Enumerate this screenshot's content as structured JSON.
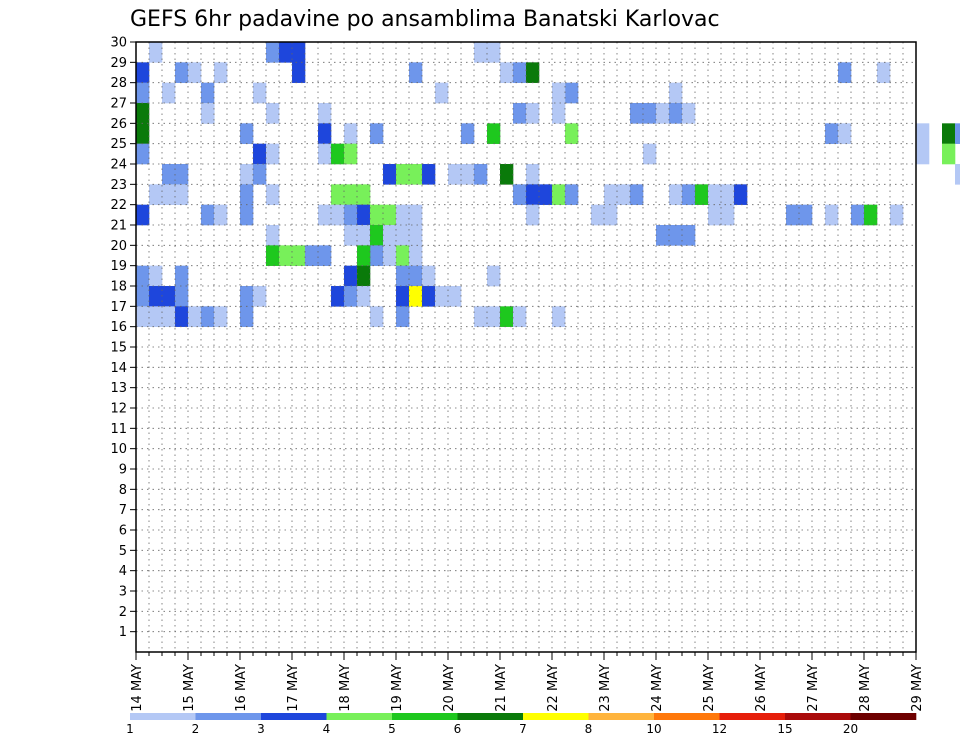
{
  "chart_data": {
    "type": "heatmap",
    "title": "GEFS 6hr padavine po ansamblima Banatski Karlovac",
    "y_labels": [
      "1",
      "2",
      "3",
      "4",
      "5",
      "6",
      "7",
      "8",
      "9",
      "10",
      "11",
      "12",
      "13",
      "14",
      "15",
      "16",
      "17",
      "18",
      "19",
      "20",
      "21",
      "22",
      "23",
      "24",
      "25",
      "26",
      "27",
      "28",
      "29",
      "30"
    ],
    "x_labels": [
      "14 MAY",
      "15 MAY",
      "16 MAY",
      "17 MAY",
      "18 MAY",
      "19 MAY",
      "20 MAY",
      "21 MAY",
      "22 MAY",
      "23 MAY",
      "24 MAY",
      "25 MAY",
      "26 MAY",
      "27 MAY",
      "28 MAY",
      "29 MAY"
    ],
    "ylim": [
      0,
      30
    ],
    "x_range_days": [
      14,
      29
    ],
    "time_step_hours": 6,
    "grid": true,
    "legend_placement": "bottom",
    "legend": {
      "labels": [
        "1",
        "2",
        "3",
        "4",
        "5",
        "6",
        "7",
        "8",
        "10",
        "12",
        "15",
        "20"
      ],
      "colors": [
        "#b4c8f5",
        "#6e96eb",
        "#1e46dc",
        "#78f05a",
        "#1ec81e",
        "#0a7a0a",
        "#ffff00",
        "#ffb43c",
        "#ff780a",
        "#e61e0a",
        "#aa0a0a",
        "#6e0000"
      ]
    },
    "cells": [
      [
        29,
        1,
        0
      ],
      [
        29,
        10,
        1
      ],
      [
        29,
        12,
        2
      ],
      [
        29,
        11,
        2
      ],
      [
        29,
        26,
        0
      ],
      [
        29,
        27,
        0
      ],
      [
        28,
        0,
        2
      ],
      [
        28,
        3,
        1
      ],
      [
        28,
        4,
        0
      ],
      [
        28,
        6,
        0
      ],
      [
        28,
        12,
        2
      ],
      [
        28,
        21,
        1
      ],
      [
        28,
        28,
        0
      ],
      [
        28,
        29,
        1
      ],
      [
        28,
        30,
        5
      ],
      [
        28,
        54,
        1
      ],
      [
        28,
        57,
        0
      ],
      [
        28,
        64,
        0
      ],
      [
        28,
        67,
        3
      ],
      [
        28,
        68,
        5
      ],
      [
        28,
        70,
        0
      ],
      [
        28,
        71,
        0
      ],
      [
        27,
        0,
        1
      ],
      [
        27,
        2,
        0
      ],
      [
        27,
        5,
        1
      ],
      [
        27,
        9,
        0
      ],
      [
        27,
        23,
        0
      ],
      [
        27,
        32,
        0
      ],
      [
        27,
        33,
        1
      ],
      [
        27,
        32,
        0
      ],
      [
        27,
        41,
        0
      ],
      [
        26,
        0,
        5
      ],
      [
        26,
        5,
        1
      ],
      [
        26,
        5,
        0
      ],
      [
        26,
        10,
        0
      ],
      [
        26,
        14,
        0
      ],
      [
        26,
        29,
        1
      ],
      [
        26,
        30,
        0
      ],
      [
        26,
        32,
        0
      ],
      [
        26,
        38,
        1
      ],
      [
        26,
        39,
        1
      ],
      [
        26,
        40,
        0
      ],
      [
        26,
        41,
        1
      ],
      [
        26,
        42,
        0
      ],
      [
        25,
        0,
        5
      ],
      [
        25,
        8,
        1
      ],
      [
        25,
        14,
        2
      ],
      [
        25,
        16,
        0
      ],
      [
        25,
        18,
        1
      ],
      [
        25,
        25,
        1
      ],
      [
        25,
        27,
        4
      ],
      [
        25,
        33,
        3
      ],
      [
        25,
        53,
        1
      ],
      [
        25,
        54,
        0
      ],
      [
        25,
        60,
        0
      ],
      [
        25,
        62,
        5
      ],
      [
        25,
        63,
        1
      ],
      [
        25,
        64,
        5
      ],
      [
        25,
        68,
        2
      ],
      [
        25,
        69,
        1
      ],
      [
        25,
        71,
        0
      ],
      [
        24,
        0,
        1
      ],
      [
        24,
        9,
        2
      ],
      [
        24,
        10,
        0
      ],
      [
        24,
        14,
        0
      ],
      [
        24,
        15,
        4
      ],
      [
        24,
        16,
        3
      ],
      [
        24,
        39,
        0
      ],
      [
        24,
        60,
        0
      ],
      [
        24,
        62,
        3
      ],
      [
        24,
        64,
        0
      ],
      [
        24,
        71,
        1
      ],
      [
        23,
        2,
        1
      ],
      [
        23,
        3,
        1
      ],
      [
        23,
        8,
        0
      ],
      [
        23,
        9,
        1
      ],
      [
        23,
        19,
        2
      ],
      [
        23,
        20,
        3
      ],
      [
        23,
        21,
        3
      ],
      [
        23,
        22,
        2
      ],
      [
        23,
        24,
        0
      ],
      [
        23,
        25,
        0
      ],
      [
        23,
        26,
        1
      ],
      [
        23,
        28,
        5
      ],
      [
        23,
        30,
        0
      ],
      [
        23,
        63,
        0
      ],
      [
        23,
        64,
        0
      ],
      [
        23,
        65,
        0
      ],
      [
        23,
        70,
        1
      ],
      [
        23,
        71,
        2
      ],
      [
        22,
        1,
        0
      ],
      [
        22,
        2,
        0
      ],
      [
        22,
        3,
        0
      ],
      [
        22,
        8,
        1
      ],
      [
        22,
        10,
        0
      ],
      [
        22,
        15,
        3
      ],
      [
        22,
        16,
        3
      ],
      [
        22,
        17,
        3
      ],
      [
        22,
        29,
        1
      ],
      [
        22,
        30,
        2
      ],
      [
        22,
        31,
        2
      ],
      [
        22,
        32,
        3
      ],
      [
        22,
        33,
        1
      ],
      [
        22,
        36,
        0
      ],
      [
        22,
        37,
        0
      ],
      [
        22,
        38,
        1
      ],
      [
        22,
        41,
        0
      ],
      [
        22,
        42,
        1
      ],
      [
        22,
        43,
        4
      ],
      [
        22,
        44,
        0
      ],
      [
        22,
        45,
        0
      ],
      [
        22,
        46,
        2
      ],
      [
        21,
        0,
        2
      ],
      [
        21,
        5,
        1
      ],
      [
        21,
        6,
        0
      ],
      [
        21,
        8,
        1
      ],
      [
        21,
        14,
        0
      ],
      [
        21,
        15,
        0
      ],
      [
        21,
        16,
        1
      ],
      [
        21,
        17,
        2
      ],
      [
        21,
        18,
        3
      ],
      [
        21,
        19,
        3
      ],
      [
        21,
        20,
        0
      ],
      [
        21,
        21,
        0
      ],
      [
        21,
        30,
        0
      ],
      [
        21,
        35,
        0
      ],
      [
        21,
        36,
        0
      ],
      [
        21,
        44,
        0
      ],
      [
        21,
        45,
        0
      ],
      [
        21,
        50,
        1
      ],
      [
        21,
        51,
        1
      ],
      [
        21,
        53,
        0
      ],
      [
        21,
        55,
        1
      ],
      [
        21,
        56,
        4
      ],
      [
        21,
        58,
        0
      ],
      [
        20,
        10,
        0
      ],
      [
        20,
        16,
        0
      ],
      [
        20,
        17,
        0
      ],
      [
        20,
        18,
        4
      ],
      [
        20,
        19,
        0
      ],
      [
        20,
        20,
        0
      ],
      [
        20,
        21,
        0
      ],
      [
        20,
        40,
        1
      ],
      [
        20,
        41,
        1
      ],
      [
        20,
        42,
        1
      ],
      [
        19,
        10,
        4
      ],
      [
        19,
        11,
        3
      ],
      [
        19,
        12,
        3
      ],
      [
        19,
        13,
        1
      ],
      [
        19,
        18,
        1
      ],
      [
        19,
        19,
        0
      ],
      [
        19,
        14,
        1
      ],
      [
        19,
        17,
        4
      ],
      [
        19,
        20,
        3
      ],
      [
        19,
        21,
        0
      ],
      [
        18,
        0,
        1
      ],
      [
        18,
        1,
        0
      ],
      [
        18,
        3,
        1
      ],
      [
        18,
        16,
        2
      ],
      [
        18,
        17,
        5
      ],
      [
        18,
        20,
        1
      ],
      [
        18,
        21,
        1
      ],
      [
        18,
        22,
        0
      ],
      [
        18,
        27,
        0
      ],
      [
        17,
        0,
        1
      ],
      [
        17,
        1,
        2
      ],
      [
        17,
        2,
        2
      ],
      [
        17,
        3,
        1
      ],
      [
        17,
        8,
        1
      ],
      [
        17,
        9,
        0
      ],
      [
        17,
        15,
        2
      ],
      [
        17,
        16,
        1
      ],
      [
        17,
        17,
        0
      ],
      [
        17,
        20,
        2
      ],
      [
        17,
        21,
        6
      ],
      [
        17,
        22,
        2
      ],
      [
        17,
        23,
        0
      ],
      [
        17,
        24,
        0
      ],
      [
        16,
        0,
        0
      ],
      [
        16,
        1,
        0
      ],
      [
        16,
        2,
        0
      ],
      [
        16,
        3,
        2
      ],
      [
        16,
        4,
        0
      ],
      [
        16,
        5,
        1
      ],
      [
        16,
        6,
        0
      ],
      [
        16,
        8,
        1
      ],
      [
        16,
        18,
        0
      ],
      [
        16,
        20,
        1
      ],
      [
        16,
        26,
        0
      ],
      [
        16,
        27,
        0
      ],
      [
        16,
        28,
        4
      ],
      [
        16,
        29,
        0
      ],
      [
        16,
        32,
        0
      ]
    ]
  }
}
